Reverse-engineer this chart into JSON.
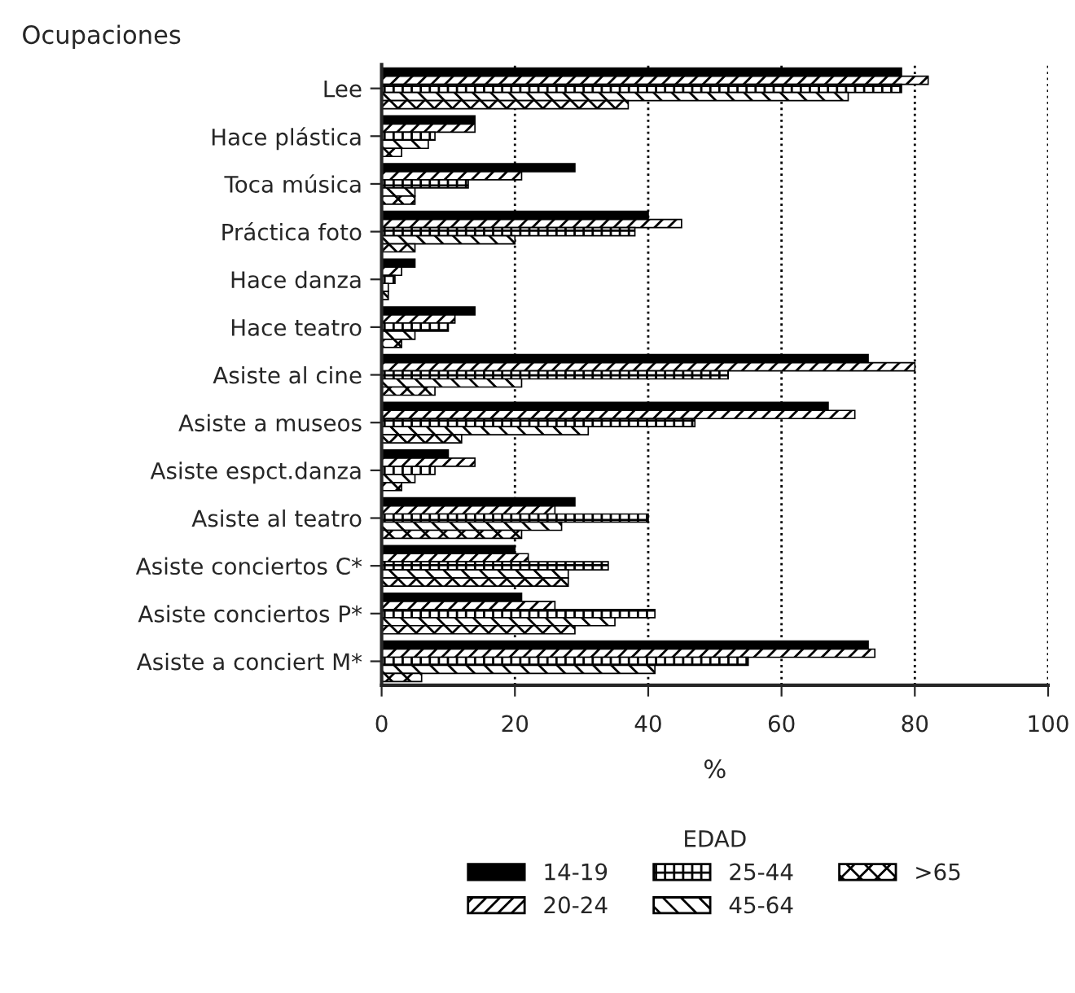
{
  "chart_data": {
    "type": "bar",
    "orientation": "horizontal",
    "title": "Ocupaciones",
    "xlabel": "%",
    "legend_title": "EDAD",
    "categories": [
      "Lee",
      "Hace plástica",
      "Toca música",
      "Práctica foto",
      "Hace danza",
      "Hace teatro",
      "Asiste al cine",
      "Asiste a museos",
      "Asiste espct.danza",
      "Asiste al teatro",
      "Asiste conciertos C*",
      "Asiste conciertos P*",
      "Asiste a conciert M*"
    ],
    "series": [
      {
        "name": "14-19",
        "color": "#000000",
        "values": [
          78,
          14,
          29,
          40,
          5,
          14,
          73,
          67,
          10,
          29,
          20,
          21,
          73
        ]
      },
      {
        "name": "20-24",
        "color": "#000000",
        "values": [
          82,
          14,
          21,
          45,
          3,
          11,
          80,
          71,
          14,
          26,
          22,
          26,
          74
        ]
      },
      {
        "name": "25-44",
        "color": "#000000",
        "values": [
          78,
          8,
          13,
          38,
          2,
          10,
          52,
          47,
          8,
          40,
          34,
          41,
          55
        ]
      },
      {
        "name": "45-64",
        "color": "#000000",
        "values": [
          70,
          7,
          5,
          20,
          1,
          5,
          21,
          31,
          5,
          27,
          28,
          35,
          41
        ]
      },
      {
        "name": ">65",
        "color": "#000000",
        "values": [
          37,
          3,
          5,
          5,
          1,
          3,
          8,
          12,
          3,
          21,
          28,
          29,
          6
        ]
      }
    ],
    "xlim": [
      0,
      100
    ],
    "xticks": [
      0,
      20,
      40,
      60,
      80,
      100
    ],
    "grid": "x",
    "legend": "bottom"
  }
}
